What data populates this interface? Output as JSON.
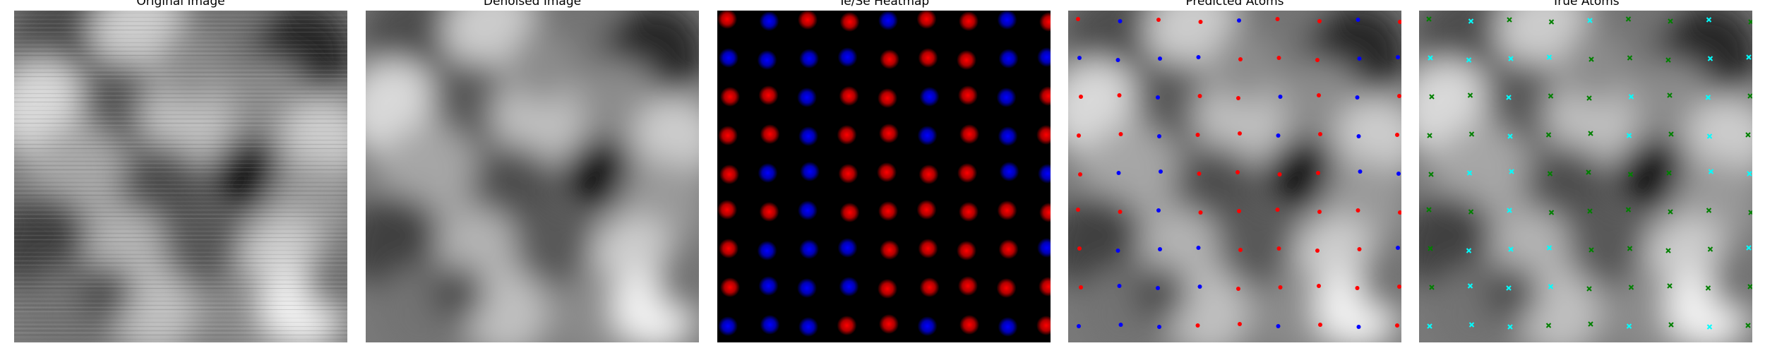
{
  "panels": [
    {
      "title": "Original Image"
    },
    {
      "title": "Denoised Image"
    },
    {
      "title": "Te/Se Heatmap"
    },
    {
      "title": "Predicted Atoms"
    },
    {
      "title": "True Atoms"
    }
  ],
  "colors": {
    "te": "#ff0000",
    "se": "#0000ff",
    "true_primary": "#00ffff",
    "true_secondary": "#008000"
  }
}
